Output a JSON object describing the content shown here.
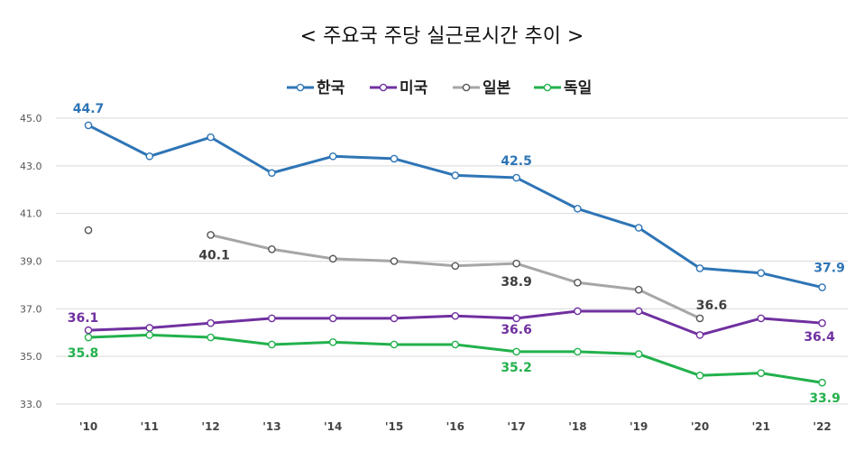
{
  "chart_data": {
    "type": "line",
    "title": "< 주요국 주당 실근로시간 추이 >",
    "categories": [
      "'10",
      "'11",
      "'12",
      "'13",
      "'14",
      "'15",
      "'16",
      "'17",
      "'18",
      "'19",
      "'20",
      "'21",
      "'22"
    ],
    "ylim": [
      33.0,
      45.0
    ],
    "yticks": [
      "45.0",
      "43.0",
      "41.0",
      "39.0",
      "37.0",
      "35.0",
      "33.0"
    ],
    "grid": true,
    "legend_position": "top",
    "series": [
      {
        "name": "한국",
        "color": "#2E75B6",
        "values": [
          44.7,
          43.4,
          44.2,
          42.7,
          43.4,
          43.3,
          42.6,
          42.5,
          41.2,
          40.4,
          38.7,
          38.5,
          37.9
        ]
      },
      {
        "name": "미국",
        "color": "#7030A0",
        "values": [
          36.1,
          36.2,
          36.4,
          36.6,
          36.6,
          36.6,
          36.7,
          36.6,
          36.9,
          36.9,
          35.9,
          36.6,
          36.4
        ]
      },
      {
        "name": "일본",
        "color": "#A6A6A6",
        "values": [
          40.3,
          null,
          40.1,
          39.5,
          39.1,
          39.0,
          38.8,
          38.9,
          38.1,
          37.8,
          36.6,
          null,
          null
        ]
      },
      {
        "name": "독일",
        "color": "#22B14C",
        "values": [
          35.8,
          35.9,
          35.8,
          35.5,
          35.6,
          35.5,
          35.5,
          35.2,
          35.2,
          35.1,
          34.2,
          34.3,
          33.9
        ]
      }
    ],
    "labels": [
      {
        "series": 0,
        "index": 0,
        "text": "44.7",
        "color": "#2E75B6"
      },
      {
        "series": 0,
        "index": 7,
        "text": "42.5",
        "color": "#2E75B6"
      },
      {
        "series": 0,
        "index": 12,
        "text": "37.9",
        "color": "#2E75B6"
      },
      {
        "series": 1,
        "index": 0,
        "text": "36.1",
        "color": "#7030A0"
      },
      {
        "series": 1,
        "index": 7,
        "text": "36.6",
        "color": "#7030A0"
      },
      {
        "series": 1,
        "index": 12,
        "text": "36.4",
        "color": "#7030A0"
      },
      {
        "series": 2,
        "index": 2,
        "text": "40.1",
        "color": "#404040"
      },
      {
        "series": 2,
        "index": 7,
        "text": "38.9",
        "color": "#404040"
      },
      {
        "series": 2,
        "index": 10,
        "text": "36.6",
        "color": "#404040"
      },
      {
        "series": 3,
        "index": 0,
        "text": "35.8",
        "color": "#22B14C"
      },
      {
        "series": 3,
        "index": 7,
        "text": "35.2",
        "color": "#22B14C"
      },
      {
        "series": 3,
        "index": 12,
        "text": "33.9",
        "color": "#22B14C"
      }
    ]
  }
}
